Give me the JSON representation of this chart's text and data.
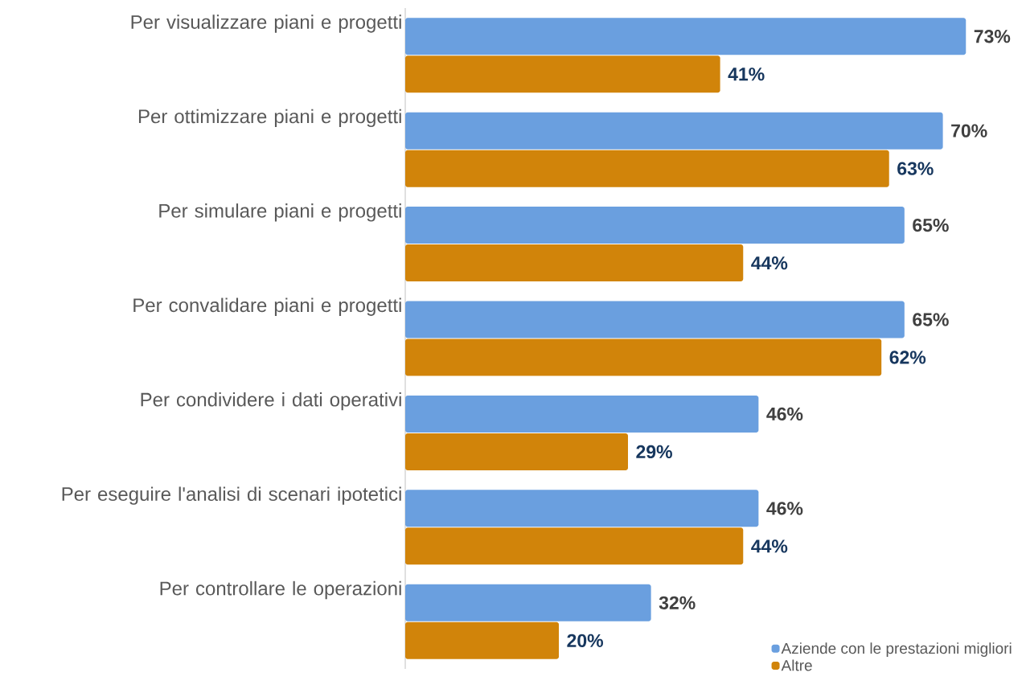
{
  "chart_data": {
    "type": "bar",
    "orientation": "horizontal",
    "categories": [
      "Per visualizzare piani e progetti",
      "Per ottimizzare piani e progetti",
      "Per simulare piani e progetti",
      "Per convalidare piani e progetti",
      "Per condividere i dati operativi",
      "Per eseguire l'analisi di scenari ipotetici",
      "Per controllare le operazioni"
    ],
    "tick_labels": "y",
    "legend": "bottom right",
    "series": [
      {
        "name": "Aziende con le prestazioni migliori",
        "color": "#6a9fdf",
        "values": [
          73,
          70,
          65,
          65,
          46,
          46,
          32
        ],
        "value_labels": [
          "73%",
          "70%",
          "65%",
          "65%",
          "46%",
          "46%",
          "32%"
        ]
      },
      {
        "name": "Altre",
        "color": "#d1840a",
        "values": [
          41,
          63,
          44,
          62,
          29,
          44,
          20
        ],
        "value_labels": [
          "41%",
          "63%",
          "44%",
          "62%",
          "29%",
          "44%",
          "20%"
        ]
      }
    ]
  }
}
